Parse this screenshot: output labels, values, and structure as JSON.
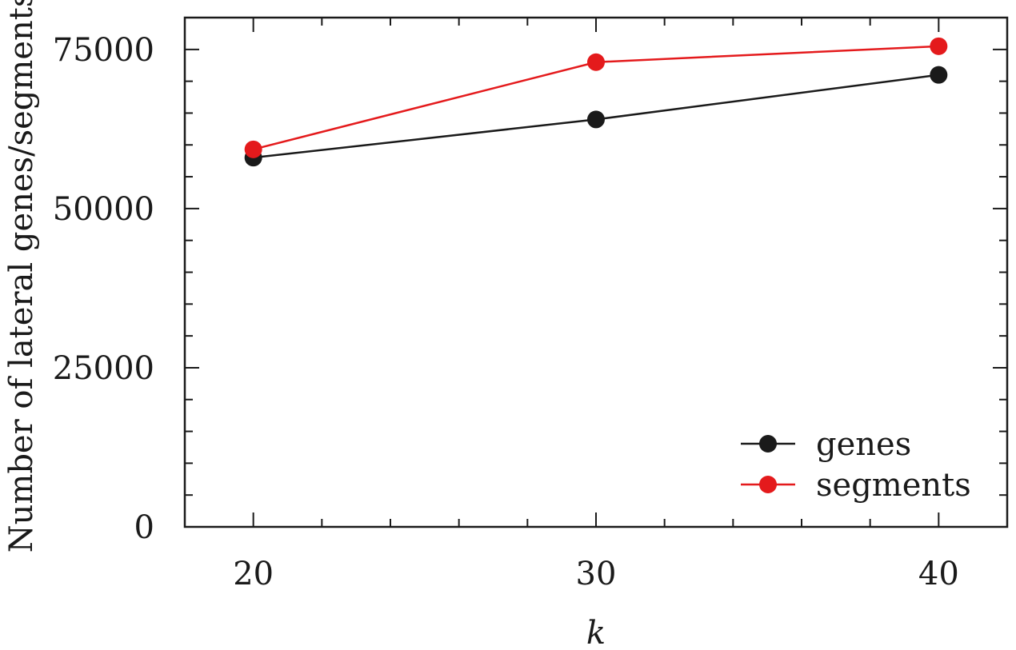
{
  "chart_data": {
    "type": "line",
    "x": [
      20,
      30,
      40
    ],
    "series": [
      {
        "name": "genes",
        "values": [
          58000,
          64000,
          71000
        ],
        "color": "#1a1a1a"
      },
      {
        "name": "segments",
        "values": [
          59300,
          73000,
          75500
        ],
        "color": "#e41a1c"
      }
    ],
    "xlabel": "k",
    "ylabel": "Number of lateral genes/segments",
    "x_ticks": [
      "20",
      "30",
      "40"
    ],
    "y_ticks": [
      "0",
      "25000",
      "50000",
      "75000"
    ],
    "xlim": [
      18,
      42
    ],
    "ylim": [
      0,
      80000
    ],
    "grid": false,
    "legend_position": "bottom-right"
  }
}
